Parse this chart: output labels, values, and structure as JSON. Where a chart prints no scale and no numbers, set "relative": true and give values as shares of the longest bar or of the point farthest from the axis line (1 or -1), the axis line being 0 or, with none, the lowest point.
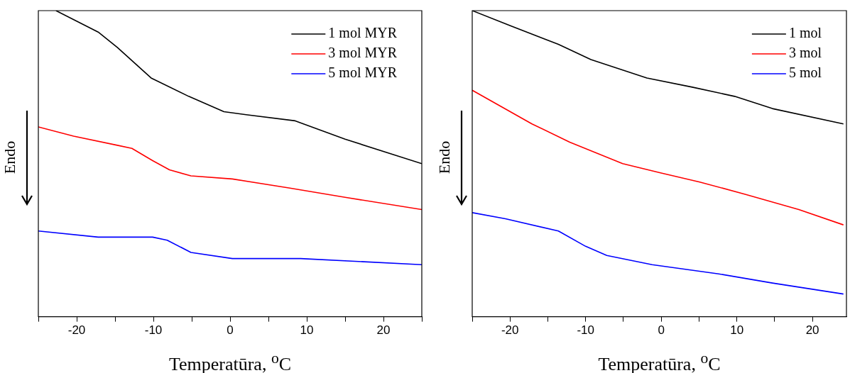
{
  "chart_data": [
    {
      "type": "line",
      "relative": true,
      "xlabel": "Temperatūra, $^{o}$C",
      "annotations": [
        "Endo"
      ],
      "legend": "top right",
      "tick_labels": "x",
      "xlim": [
        -25,
        25
      ],
      "xticks": [
        {
          "value": -25,
          "label": null
        },
        -20,
        {
          "value": -15,
          "label": null
        },
        -10,
        {
          "value": -5,
          "label": null
        },
        0,
        {
          "value": 5,
          "label": null
        },
        10,
        {
          "value": 15,
          "label": null
        },
        20,
        {
          "value": 25,
          "label": null
        }
      ],
      "series": [
        {
          "name": "1 mol MYR",
          "color": "#000000",
          "x": [
            -22.7,
            -17.2,
            -14.7,
            -10.3,
            -5.4,
            -0.8,
            2.1,
            8.5,
            15,
            25
          ],
          "values": [
            1.0,
            0.93,
            0.88,
            0.78,
            0.72,
            0.67,
            0.66,
            0.64,
            0.58,
            0.5
          ]
        },
        {
          "name": "3 mol MYR",
          "color": "#ff0000",
          "x": [
            -25,
            -20.4,
            -14.7,
            -12.8,
            -10.1,
            -7.9,
            -5.1,
            0.3,
            7.8,
            15,
            25
          ],
          "values": [
            0.62,
            0.59,
            0.56,
            0.55,
            0.51,
            0.48,
            0.46,
            0.45,
            0.42,
            0.39,
            0.35
          ]
        },
        {
          "name": "5 mol MYR",
          "color": "#0000ff",
          "x": [
            -25,
            -17.2,
            -10.1,
            -8.2,
            -5.1,
            0.3,
            9.2,
            25
          ],
          "values": [
            0.28,
            0.26,
            0.26,
            0.25,
            0.21,
            0.19,
            0.19,
            0.17
          ]
        }
      ]
    },
    {
      "type": "line",
      "relative": true,
      "xlabel": "Temperatūra, $^{o}$C",
      "annotations": [
        "Endo"
      ],
      "legend": "top right",
      "tick_labels": "x",
      "xlim": [
        -25,
        24.5
      ],
      "xticks": [
        {
          "value": -25,
          "label": null
        },
        -20,
        {
          "value": -15,
          "label": null
        },
        -10,
        {
          "value": -5,
          "label": null
        },
        0,
        {
          "value": 5,
          "label": null
        },
        10,
        {
          "value": 15,
          "label": null
        },
        20
      ],
      "series": [
        {
          "name": "1 mol",
          "color": "#000000",
          "x": [
            -25,
            -19.9,
            -13.6,
            -9.3,
            -1.9,
            4.1,
            9.7,
            14.7,
            24.1
          ],
          "values": [
            1.0,
            0.95,
            0.89,
            0.84,
            0.78,
            0.75,
            0.72,
            0.68,
            0.63
          ]
        },
        {
          "name": "3 mol",
          "color": "#ff0000",
          "x": [
            -25,
            -17.1,
            -12.1,
            -5.1,
            -0.1,
            5.1,
            11.1,
            18.2,
            24.1
          ],
          "values": [
            0.74,
            0.63,
            0.57,
            0.5,
            0.47,
            0.44,
            0.4,
            0.35,
            0.3
          ]
        },
        {
          "name": "5 mol",
          "color": "#0000ff",
          "x": [
            -25,
            -20.6,
            -13.6,
            -10,
            -7.2,
            -1.2,
            7.6,
            14.7,
            24.1
          ],
          "values": [
            0.34,
            0.32,
            0.28,
            0.23,
            0.2,
            0.17,
            0.14,
            0.11,
            0.074
          ]
        }
      ]
    }
  ]
}
